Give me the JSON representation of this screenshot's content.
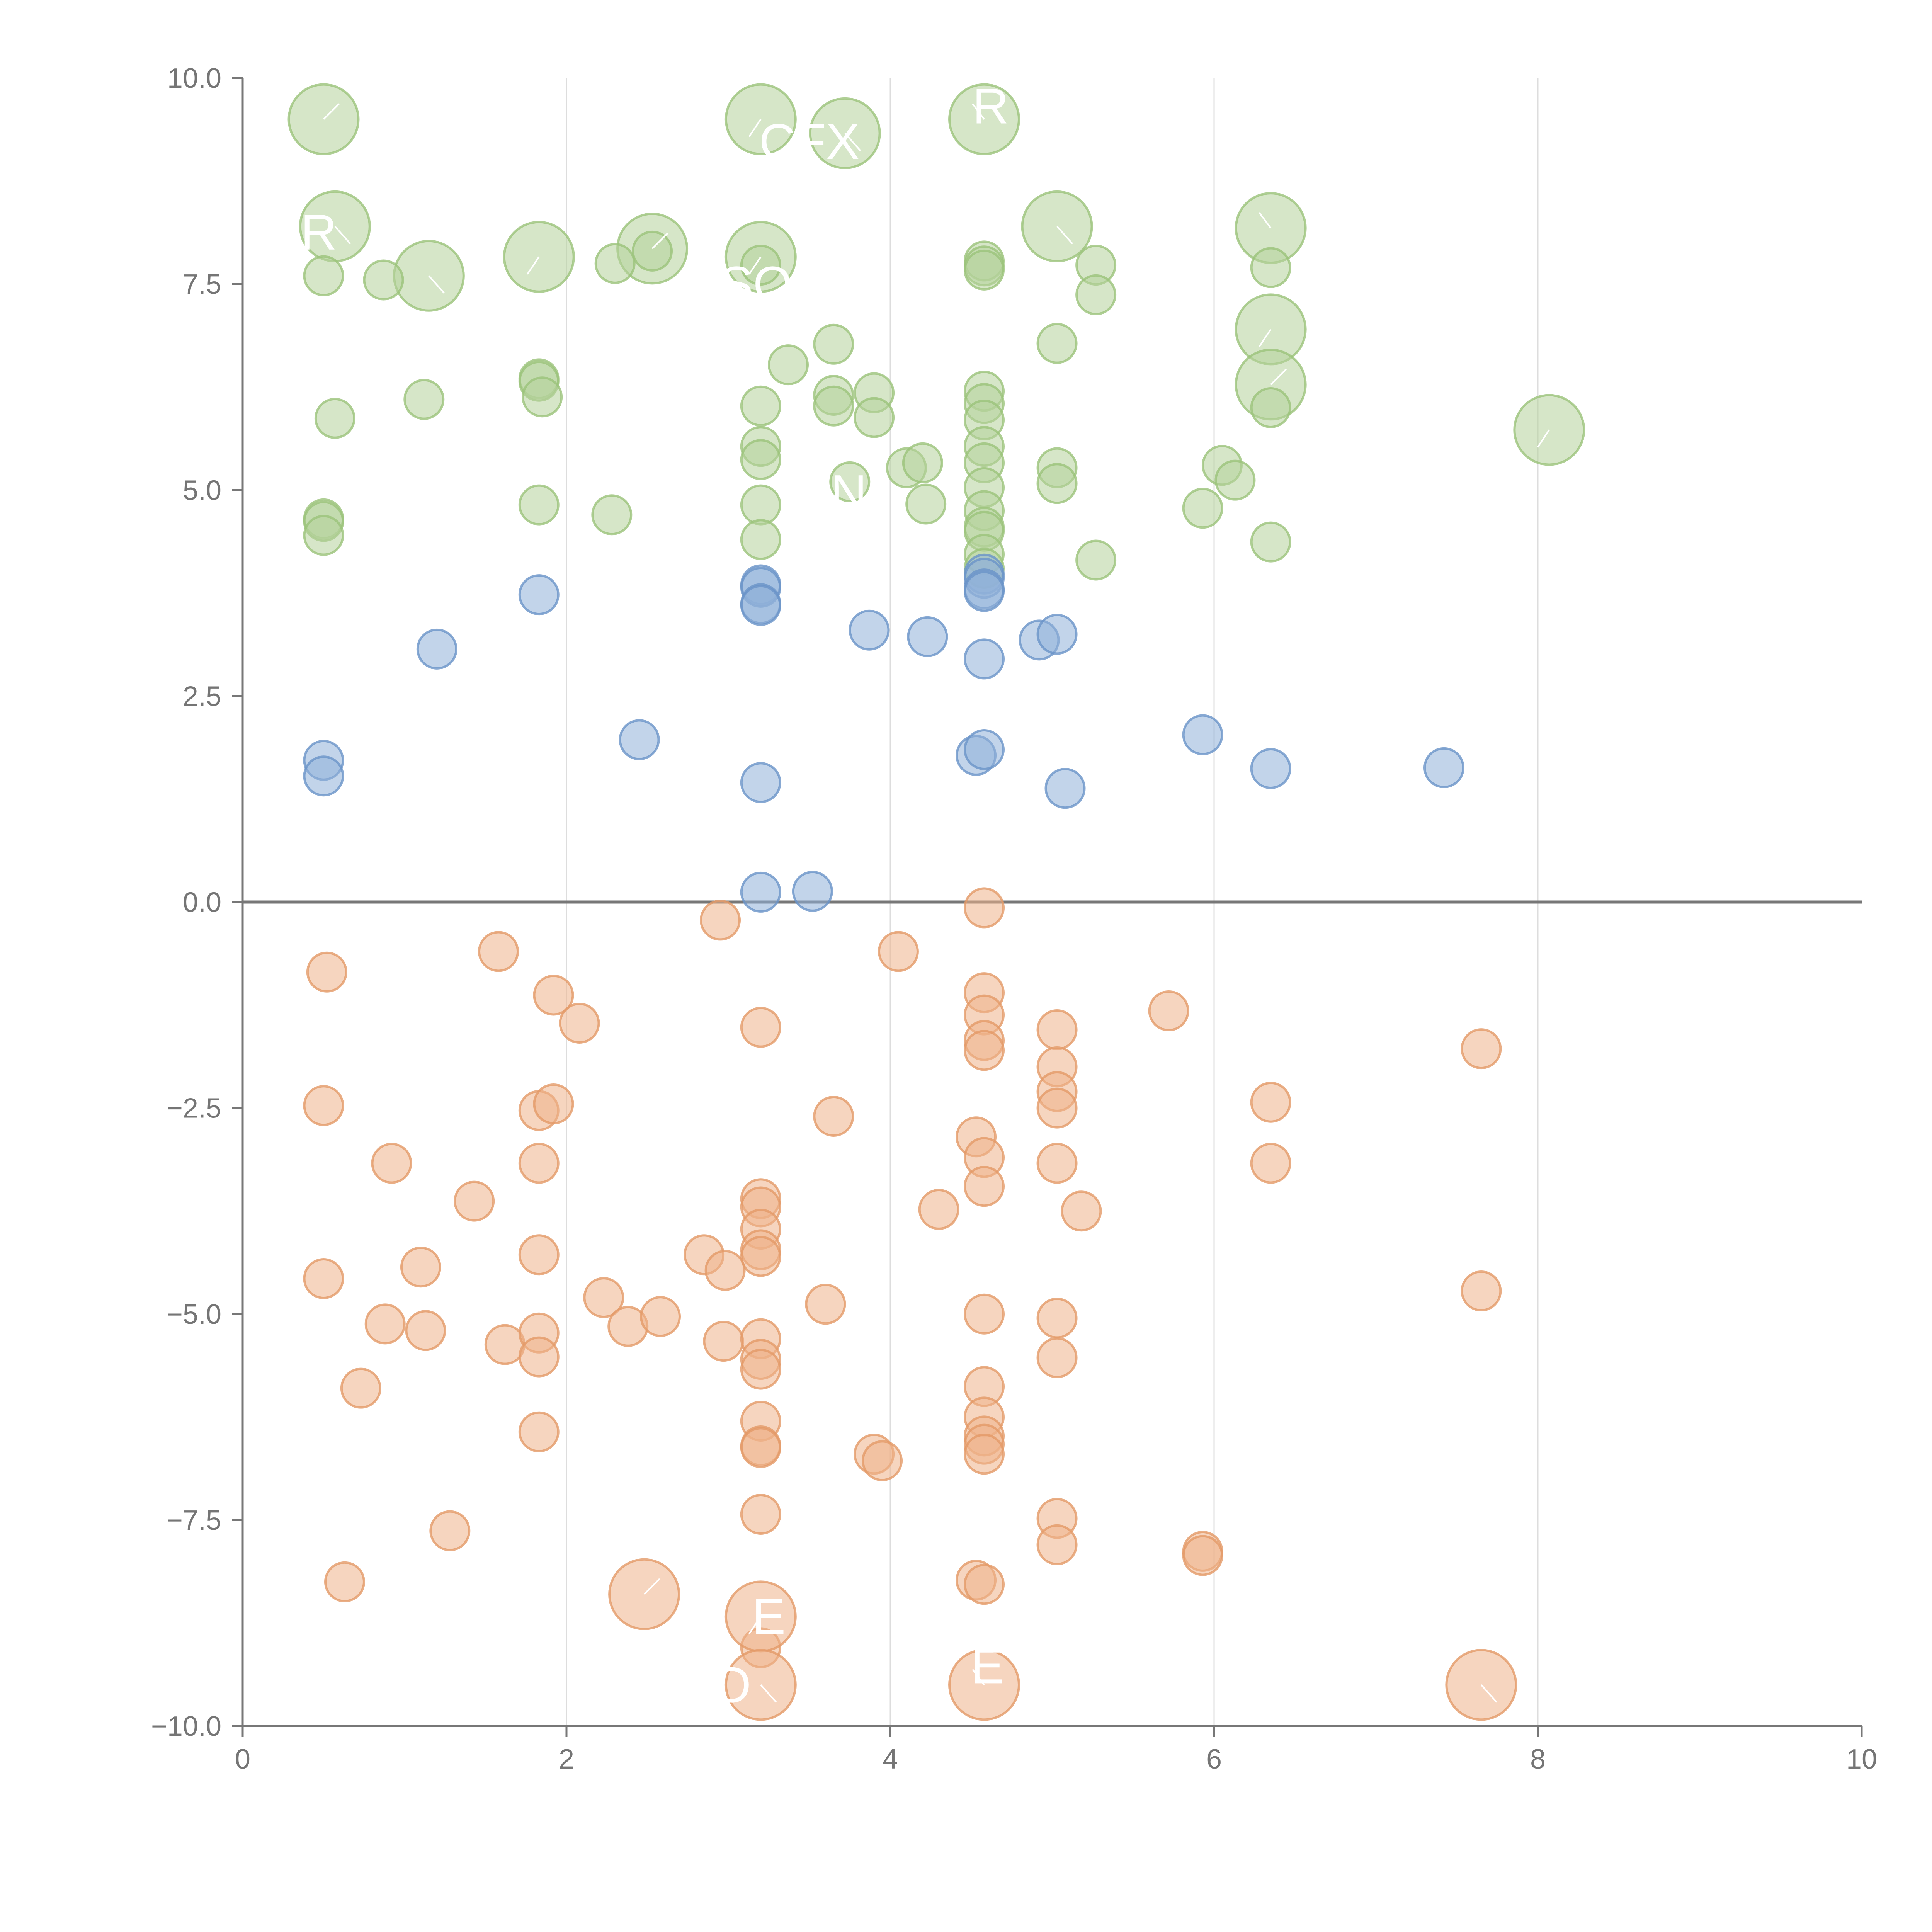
{
  "chart_data": {
    "type": "scatter",
    "title": "",
    "xlabel": "",
    "ylabel": "",
    "xlim": [
      0,
      10
    ],
    "ylim": [
      -10,
      10
    ],
    "x_ticks": [
      0,
      2,
      4,
      6,
      8,
      10
    ],
    "x_tick_labels": [
      "0",
      "2",
      "4",
      "6",
      "8",
      "10"
    ],
    "y_ticks": [
      10,
      7.5,
      5,
      2.5,
      0,
      -2.5,
      -5,
      -7.5,
      -10
    ],
    "y_tick_labels": [
      "10.0",
      "7.5",
      "5.0",
      "2.5",
      "0.0",
      "−2.5",
      "−5.0",
      "−7.5",
      "−10.0"
    ],
    "vertical_grid_at": [
      2,
      4,
      6,
      8
    ],
    "zero_line": 0,
    "colors": {
      "green": {
        "fill": "#b5d19a",
        "stroke": "#9bc37a"
      },
      "blue": {
        "fill": "#8fb0d9",
        "stroke": "#6a93c8"
      },
      "orange": {
        "fill": "#eeb28a",
        "stroke": "#e49a68"
      }
    },
    "series": [
      {
        "name": "green",
        "size_scale": "r: 1 = small, 2 = large",
        "points": [
          [
            0.5,
            9.5,
            2
          ],
          [
            3.2,
            9.5,
            2
          ],
          [
            3.72,
            9.33,
            2
          ],
          [
            4.58,
            9.5,
            2
          ],
          [
            0.57,
            8.2,
            2
          ],
          [
            1.83,
            7.83,
            2
          ],
          [
            2.53,
            7.93,
            2
          ],
          [
            3.2,
            7.83,
            2
          ],
          [
            5.03,
            8.2,
            2
          ],
          [
            6.35,
            8.18,
            2
          ],
          [
            1.15,
            7.6,
            2
          ],
          [
            6.35,
            6.95,
            2
          ],
          [
            6.35,
            6.28,
            2
          ],
          [
            8.07,
            5.73,
            2
          ],
          [
            0.5,
            7.6,
            1
          ],
          [
            0.87,
            7.55,
            1
          ],
          [
            2.3,
            7.75,
            1
          ],
          [
            2.53,
            7.9,
            1
          ],
          [
            3.2,
            7.73,
            1
          ],
          [
            4.58,
            7.78,
            1
          ],
          [
            4.58,
            7.72,
            1
          ],
          [
            4.58,
            7.67,
            1
          ],
          [
            5.27,
            7.73,
            1
          ],
          [
            5.27,
            7.37,
            1
          ],
          [
            6.35,
            7.7,
            1
          ],
          [
            1.83,
            6.35,
            1
          ],
          [
            1.83,
            6.32,
            1
          ],
          [
            1.85,
            6.13,
            1
          ],
          [
            3.37,
            6.52,
            1
          ],
          [
            3.65,
            6.77,
            1
          ],
          [
            3.65,
            6.15,
            1
          ],
          [
            3.65,
            6.02,
            1
          ],
          [
            3.9,
            6.18,
            1
          ],
          [
            3.9,
            5.88,
            1
          ],
          [
            4.58,
            6.2,
            1
          ],
          [
            4.58,
            6.05,
            1
          ],
          [
            4.58,
            5.85,
            1
          ],
          [
            5.03,
            6.78,
            1
          ],
          [
            6.35,
            6.0,
            1
          ],
          [
            0.57,
            5.87,
            1
          ],
          [
            1.12,
            6.1,
            1
          ],
          [
            3.2,
            6.02,
            1
          ],
          [
            3.2,
            5.53,
            1
          ],
          [
            3.2,
            5.37,
            1
          ],
          [
            3.75,
            5.1,
            1
          ],
          [
            4.1,
            5.27,
            1
          ],
          [
            4.2,
            5.33,
            1
          ],
          [
            4.58,
            5.53,
            1
          ],
          [
            4.58,
            5.33,
            1
          ],
          [
            5.03,
            5.27,
            1
          ],
          [
            5.03,
            5.08,
            1
          ],
          [
            6.05,
            5.3,
            1
          ],
          [
            6.13,
            5.12,
            1
          ],
          [
            0.5,
            4.65,
            1
          ],
          [
            0.5,
            4.62,
            1
          ],
          [
            0.5,
            4.45,
            1
          ],
          [
            1.83,
            4.82,
            1
          ],
          [
            2.28,
            4.7,
            1
          ],
          [
            3.2,
            4.82,
            1
          ],
          [
            3.2,
            4.4,
            1
          ],
          [
            4.22,
            4.83,
            1
          ],
          [
            4.58,
            5.03,
            1
          ],
          [
            4.58,
            4.75,
            1
          ],
          [
            4.58,
            4.55,
            1
          ],
          [
            4.58,
            4.5,
            1
          ],
          [
            4.58,
            4.22,
            1
          ],
          [
            4.58,
            4.05,
            1
          ],
          [
            5.27,
            4.15,
            1
          ],
          [
            5.93,
            4.78,
            1
          ],
          [
            6.35,
            4.37,
            1
          ]
        ]
      },
      {
        "name": "blue",
        "size_scale": "r: 1 = small",
        "points": [
          [
            1.83,
            3.73,
            1
          ],
          [
            1.2,
            3.07,
            1
          ],
          [
            3.2,
            3.85,
            1
          ],
          [
            3.2,
            3.82,
            1
          ],
          [
            3.2,
            3.62,
            1
          ],
          [
            3.2,
            3.6,
            1
          ],
          [
            3.87,
            3.3,
            1
          ],
          [
            4.23,
            3.22,
            1
          ],
          [
            4.58,
            3.98,
            1
          ],
          [
            4.58,
            3.93,
            1
          ],
          [
            4.58,
            3.8,
            1
          ],
          [
            4.58,
            3.77,
            1
          ],
          [
            4.58,
            2.95,
            1
          ],
          [
            4.92,
            3.18,
            1
          ],
          [
            5.03,
            3.25,
            1
          ],
          [
            0.5,
            1.72,
            1
          ],
          [
            0.5,
            1.53,
            1
          ],
          [
            2.45,
            1.97,
            1
          ],
          [
            3.2,
            1.45,
            1
          ],
          [
            4.53,
            1.78,
            1
          ],
          [
            4.58,
            1.85,
            1
          ],
          [
            5.08,
            1.38,
            1
          ],
          [
            5.93,
            2.03,
            1
          ],
          [
            6.35,
            1.62,
            1
          ],
          [
            7.42,
            1.63,
            1
          ],
          [
            3.2,
            0.12,
            1
          ],
          [
            3.52,
            0.13,
            1
          ]
        ]
      },
      {
        "name": "orange",
        "size_scale": "r: 1 = small, 2 = large",
        "points": [
          [
            4.58,
            -0.07,
            1
          ],
          [
            2.95,
            -0.22,
            1
          ],
          [
            1.58,
            -0.6,
            1
          ],
          [
            4.05,
            -0.6,
            1
          ],
          [
            0.52,
            -0.85,
            1
          ],
          [
            1.92,
            -1.13,
            1
          ],
          [
            2.08,
            -1.47,
            1
          ],
          [
            3.2,
            -1.52,
            1
          ],
          [
            4.58,
            -1.1,
            1
          ],
          [
            4.58,
            -1.37,
            1
          ],
          [
            4.58,
            -1.68,
            1
          ],
          [
            4.58,
            -1.8,
            1
          ],
          [
            5.03,
            -1.55,
            1
          ],
          [
            5.72,
            -1.32,
            1
          ],
          [
            7.65,
            -1.78,
            1
          ],
          [
            5.03,
            -2.0,
            1
          ],
          [
            5.03,
            -2.3,
            1
          ],
          [
            5.03,
            -2.5,
            1
          ],
          [
            0.5,
            -2.47,
            1
          ],
          [
            1.83,
            -2.53,
            1
          ],
          [
            1.92,
            -2.45,
            1
          ],
          [
            3.65,
            -2.6,
            1
          ],
          [
            4.53,
            -2.85,
            1
          ],
          [
            6.35,
            -2.43,
            1
          ],
          [
            0.92,
            -3.17,
            1
          ],
          [
            1.83,
            -3.17,
            1
          ],
          [
            4.58,
            -3.1,
            1
          ],
          [
            4.58,
            -3.45,
            1
          ],
          [
            5.03,
            -3.17,
            1
          ],
          [
            6.35,
            -3.17,
            1
          ],
          [
            1.43,
            -3.63,
            1
          ],
          [
            3.2,
            -3.6,
            1
          ],
          [
            3.2,
            -3.7,
            1
          ],
          [
            3.2,
            -3.97,
            1
          ],
          [
            3.2,
            -4.22,
            1
          ],
          [
            3.2,
            -4.3,
            1
          ],
          [
            4.3,
            -3.73,
            1
          ],
          [
            5.18,
            -3.75,
            1
          ],
          [
            0.5,
            -4.57,
            1
          ],
          [
            1.1,
            -4.43,
            1
          ],
          [
            1.83,
            -4.28,
            1
          ],
          [
            2.85,
            -4.28,
            1
          ],
          [
            2.98,
            -4.47,
            1
          ],
          [
            2.23,
            -4.8,
            1
          ],
          [
            2.38,
            -5.15,
            1
          ],
          [
            2.58,
            -5.03,
            1
          ],
          [
            0.88,
            -5.12,
            1
          ],
          [
            1.13,
            -5.2,
            1
          ],
          [
            1.62,
            -5.37,
            1
          ],
          [
            1.83,
            -5.23,
            1
          ],
          [
            1.83,
            -5.52,
            1
          ],
          [
            2.97,
            -5.33,
            1
          ],
          [
            3.2,
            -5.3,
            1
          ],
          [
            3.2,
            -5.55,
            1
          ],
          [
            3.2,
            -5.67,
            1
          ],
          [
            3.6,
            -4.88,
            1
          ],
          [
            4.58,
            -5.0,
            1
          ],
          [
            5.03,
            -5.05,
            1
          ],
          [
            5.03,
            -5.53,
            1
          ],
          [
            7.65,
            -4.72,
            1
          ],
          [
            0.73,
            -5.9,
            1
          ],
          [
            1.83,
            -6.43,
            1
          ],
          [
            3.2,
            -6.3,
            1
          ],
          [
            3.2,
            -6.6,
            1
          ],
          [
            3.2,
            -6.62,
            1
          ],
          [
            3.9,
            -6.7,
            1
          ],
          [
            3.95,
            -6.78,
            1
          ],
          [
            4.58,
            -5.88,
            1
          ],
          [
            4.58,
            -6.25,
            1
          ],
          [
            4.58,
            -6.48,
            1
          ],
          [
            4.58,
            -6.58,
            1
          ],
          [
            4.58,
            -6.7,
            1
          ],
          [
            0.63,
            -8.25,
            1
          ],
          [
            1.28,
            -7.63,
            1
          ],
          [
            3.2,
            -7.43,
            1
          ],
          [
            4.53,
            -8.23,
            1
          ],
          [
            4.58,
            -8.28,
            1
          ],
          [
            5.03,
            -7.48,
            1
          ],
          [
            5.03,
            -7.8,
            1
          ],
          [
            5.93,
            -7.88,
            1
          ],
          [
            5.93,
            -7.93,
            1
          ],
          [
            3.2,
            -9.05,
            1
          ],
          [
            2.48,
            -8.4,
            2
          ],
          [
            3.2,
            -8.67,
            2
          ],
          [
            3.2,
            -9.5,
            2
          ],
          [
            4.58,
            -9.5,
            2
          ],
          [
            7.65,
            -9.5,
            2
          ]
        ]
      }
    ],
    "annotations": [
      {
        "text": "R",
        "x": 0.47,
        "y": 8.13
      },
      {
        "text": "CFX",
        "x": 3.5,
        "y": 9.23
      },
      {
        "text": "R",
        "x": 4.62,
        "y": 9.66
      },
      {
        "text": "SO",
        "x": 3.17,
        "y": 7.5
      },
      {
        "text": "IN",
        "x": 3.7,
        "y": 4.97
      },
      {
        "text": "O",
        "x": 3.02,
        "y": -9.5
      },
      {
        "text": "E",
        "x": 3.25,
        "y": -8.67
      },
      {
        "text": "E",
        "x": 4.6,
        "y": -9.27
      }
    ]
  }
}
